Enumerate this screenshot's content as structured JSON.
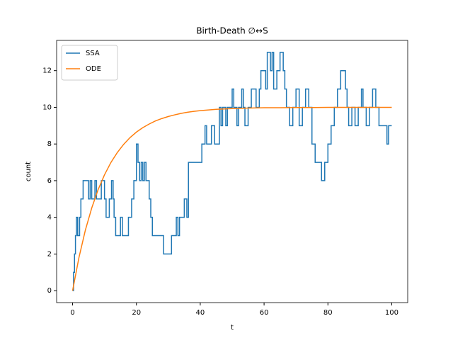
{
  "chart_data": {
    "type": "line",
    "title": "Birth-Death ∅↔S",
    "xlabel": "t",
    "ylabel": "count",
    "xlim": [
      -5,
      105
    ],
    "ylim": [
      -0.65,
      13.65
    ],
    "xticks": [
      0,
      20,
      40,
      60,
      80,
      100
    ],
    "yticks": [
      0,
      2,
      4,
      6,
      8,
      10,
      12
    ],
    "legend": "upper left",
    "series": [
      {
        "name": "SSA",
        "color": "#1f77b4",
        "step": true,
        "x": [
          0,
          0.3,
          0.6,
          0.9,
          1.2,
          1.6,
          2.2,
          2.6,
          3.3,
          5,
          5.5,
          6,
          7,
          7.5,
          9,
          10,
          10.5,
          11.5,
          12.2,
          12.7,
          13,
          13.5,
          15,
          15.6,
          17.5,
          18.5,
          19.2,
          20,
          20.5,
          21,
          21.5,
          22,
          22.5,
          23,
          24,
          24.5,
          25,
          28.5,
          31,
          32.5,
          33,
          33.5,
          35,
          35.8,
          36.3,
          40.5,
          41.5,
          42,
          43.5,
          44.5,
          46,
          46.5,
          47,
          48,
          48.5,
          50,
          50.5,
          51.5,
          52,
          53,
          53.5,
          54,
          55,
          56,
          57.5,
          58.5,
          59,
          60.5,
          61,
          62,
          62.5,
          63,
          64,
          65,
          66,
          66.5,
          67,
          68,
          69,
          70,
          71,
          72,
          73,
          74,
          75,
          76,
          78,
          79,
          80,
          81,
          82,
          83,
          84,
          85.5,
          86,
          86.5,
          87.5,
          88.5,
          89.5,
          90.5,
          91,
          92,
          93,
          94,
          95,
          96,
          98.5,
          99,
          100
        ],
        "values": [
          0,
          1,
          2,
          3,
          4,
          3,
          4,
          5,
          6,
          5,
          6,
          5,
          6,
          5,
          6,
          5,
          4,
          5,
          6,
          5,
          4,
          3,
          4,
          3,
          4,
          5,
          6,
          8,
          7,
          6,
          7,
          6,
          7,
          6,
          5,
          4,
          3,
          2,
          3,
          4,
          3,
          4,
          5,
          4,
          7,
          8,
          9,
          8,
          9,
          8,
          10,
          9,
          10,
          9,
          10,
          11,
          10,
          9,
          10,
          11,
          10,
          9,
          10,
          11,
          10,
          11,
          12,
          11,
          13,
          12,
          13,
          11,
          12,
          13,
          12,
          11,
          10,
          9,
          10,
          11,
          9,
          10,
          11,
          10,
          8,
          7,
          6,
          7,
          8,
          9,
          10,
          11,
          12,
          11,
          10,
          9,
          10,
          9,
          10,
          11,
          10,
          9,
          10,
          11,
          10,
          9,
          8,
          9,
          9
        ]
      },
      {
        "name": "ODE",
        "color": "#ff7f0e",
        "x": [
          0,
          2,
          4,
          6,
          8,
          10,
          12,
          14,
          16,
          18,
          20,
          22,
          24,
          26,
          28,
          30,
          32,
          34,
          36,
          38,
          40,
          45,
          50,
          55,
          60,
          65,
          70,
          75,
          80,
          85,
          90,
          95,
          100
        ],
        "values": [
          0,
          1.81,
          3.3,
          4.51,
          5.51,
          6.32,
          6.99,
          7.53,
          7.98,
          8.35,
          8.65,
          8.89,
          9.09,
          9.26,
          9.39,
          9.5,
          9.59,
          9.67,
          9.73,
          9.78,
          9.82,
          9.89,
          9.93,
          9.96,
          9.98,
          9.98,
          9.99,
          9.99,
          10,
          10,
          10,
          10,
          10
        ]
      }
    ]
  }
}
